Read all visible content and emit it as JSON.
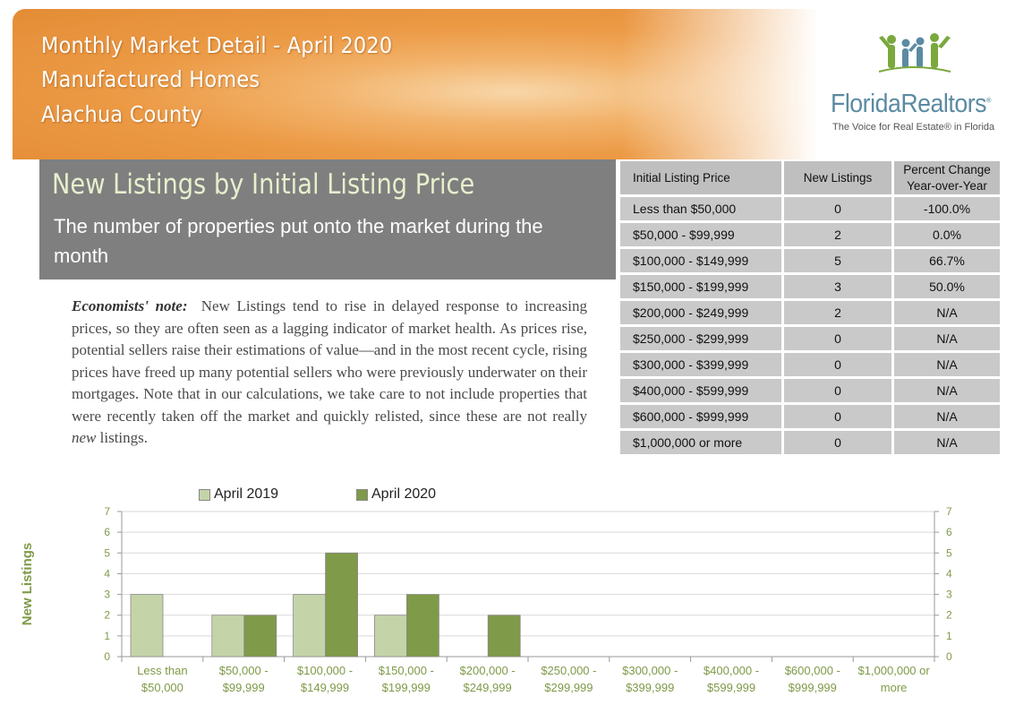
{
  "header": {
    "line1": "Monthly Market Detail - April 2020",
    "line2": "Manufactured Homes",
    "line3": "Alachua County"
  },
  "logo": {
    "name": "FloridaRealtors",
    "tagline": "The Voice for Real Estate® in Florida",
    "colors": {
      "green": "#7aa83d",
      "blue": "#5b8aa3"
    }
  },
  "section": {
    "title": "New Listings by Initial Listing Price",
    "subtitle": "The number of properties put onto the market during the month"
  },
  "note": {
    "label": "Economists' note:",
    "text_before": "New Listings tend to rise in delayed response to increasing prices, so they are often seen as a lagging indicator of market health.  As prices rise, potential sellers raise their estimations of value—and in the most recent cycle, rising prices have freed up many potential sellers who were previously underwater on their mortgages.  Note that in our calculations, we take care to not include properties that were recently taken off the market and quickly relisted, since these are not really",
    "emphasis": "new",
    "text_after": "listings."
  },
  "table": {
    "headers": [
      "Initial Listing Price",
      "New Listings",
      "Percent Change Year-over-Year"
    ],
    "rows": [
      [
        "Less than $50,000",
        "0",
        "-100.0%"
      ],
      [
        "$50,000 - $99,999",
        "2",
        "0.0%"
      ],
      [
        "$100,000 - $149,999",
        "5",
        "66.7%"
      ],
      [
        "$150,000 - $199,999",
        "3",
        "50.0%"
      ],
      [
        "$200,000 - $249,999",
        "2",
        "N/A"
      ],
      [
        "$250,000 - $299,999",
        "0",
        "N/A"
      ],
      [
        "$300,000 - $399,999",
        "0",
        "N/A"
      ],
      [
        "$400,000 - $599,999",
        "0",
        "N/A"
      ],
      [
        "$600,000 - $999,999",
        "0",
        "N/A"
      ],
      [
        "$1,000,000 or more",
        "0",
        "N/A"
      ]
    ]
  },
  "chart_data": {
    "type": "bar",
    "categories": [
      [
        "Less than",
        "$50,000"
      ],
      [
        "$50,000 -",
        "$99,999"
      ],
      [
        "$100,000 -",
        "$149,999"
      ],
      [
        "$150,000 -",
        "$199,999"
      ],
      [
        "$200,000 -",
        "$249,999"
      ],
      [
        "$250,000 -",
        "$299,999"
      ],
      [
        "$300,000 -",
        "$399,999"
      ],
      [
        "$400,000 -",
        "$599,999"
      ],
      [
        "$600,000 -",
        "$999,999"
      ],
      [
        "$1,000,000 or",
        "more"
      ]
    ],
    "series": [
      {
        "name": "April 2019",
        "values": [
          3,
          2,
          3,
          2,
          0,
          0,
          0,
          0,
          0,
          0
        ],
        "color": "#c4d4a8"
      },
      {
        "name": "April 2020",
        "values": [
          0,
          2,
          5,
          3,
          2,
          0,
          0,
          0,
          0,
          0
        ],
        "color": "#7f9a48"
      }
    ],
    "ylabel": "New Listings",
    "ylim": [
      0,
      7
    ],
    "yticks": [
      0,
      1,
      2,
      3,
      4,
      5,
      6,
      7
    ],
    "grid": true,
    "legend": "top-left",
    "axis_color": "#7f9a48"
  }
}
